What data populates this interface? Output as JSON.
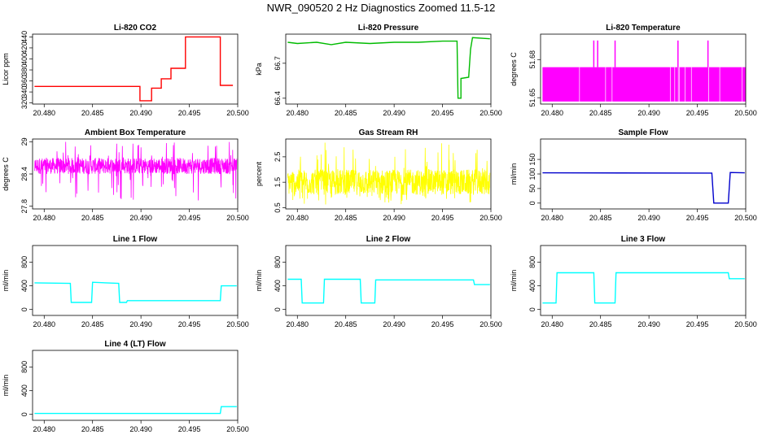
{
  "title": "NWR_090520  2 Hz Diagnostics Zoomed 11.5-12",
  "chart_data": [
    {
      "type": "line",
      "title": "Li-820 CO2",
      "ylabel": "Licor ppm",
      "color": "#ff0000",
      "xlim": [
        20.4788,
        20.5
      ],
      "ylim": [
        318,
        445
      ],
      "x_ticks": [
        "20.480",
        "20.485",
        "20.490",
        "20.495",
        "20.500"
      ],
      "y_ticks": [
        320,
        340,
        360,
        380,
        400,
        420,
        440
      ],
      "series": [
        {
          "x": [
            20.479,
            20.4899,
            20.4899,
            20.4911,
            20.4911,
            20.4921,
            20.4921,
            20.4931,
            20.4931,
            20.4946,
            20.4946,
            20.4982,
            20.4982,
            20.4995
          ],
          "y": [
            350,
            350,
            324,
            324,
            347,
            347,
            364,
            364,
            383,
            383,
            440,
            440,
            352,
            352
          ]
        }
      ]
    },
    {
      "type": "line",
      "title": "Li-820 Pressure",
      "ylabel": "kPa",
      "color": "#00bb00",
      "xlim": [
        20.4788,
        20.5
      ],
      "ylim": [
        66.35,
        66.95
      ],
      "x_ticks": [
        "20.480",
        "20.485",
        "20.490",
        "20.495",
        "20.500"
      ],
      "y_ticks": [
        66.4,
        66.7
      ],
      "series": [
        {
          "x": [
            20.479,
            20.48,
            20.482,
            20.4835,
            20.485,
            20.4875,
            20.49,
            20.4925,
            20.495,
            20.4965,
            20.4966,
            20.4969,
            20.4969,
            20.4977,
            20.4979,
            20.4981,
            20.4999
          ],
          "y": [
            66.88,
            66.87,
            66.88,
            66.86,
            66.88,
            66.87,
            66.88,
            66.88,
            66.89,
            66.89,
            66.4,
            66.4,
            66.57,
            66.58,
            66.82,
            66.92,
            66.91
          ]
        }
      ]
    },
    {
      "type": "line",
      "title": "Li-820 Temperature",
      "ylabel": "degrees C",
      "color": "#ff00ff",
      "xlim": [
        20.4788,
        20.5
      ],
      "ylim": [
        51.645,
        51.7
      ],
      "x_ticks": [
        "20.480",
        "20.485",
        "20.490",
        "20.495",
        "20.500"
      ],
      "y_ticks": [
        "51.65",
        "51.68"
      ],
      "series": [
        {
          "x": [
            20.479,
            20.5
          ],
          "y": [
            51.647,
            51.674
          ],
          "spikes_x": [
            20.4843,
            20.4847,
            20.4865,
            20.493,
            20.4961
          ],
          "spike_y": 51.695
        }
      ]
    },
    {
      "type": "line",
      "title": "Ambient Box Temperature",
      "ylabel": "degrees C",
      "color": "#ff00ff",
      "xlim": [
        20.4788,
        20.5
      ],
      "ylim": [
        27.75,
        29.05
      ],
      "x_ticks": [
        "20.480",
        "20.485",
        "20.490",
        "20.495",
        "20.500"
      ],
      "y_ticks": [
        27.8,
        28.4,
        29.0
      ],
      "series": [
        {
          "band": [
            28.4,
            28.7
          ],
          "min": 27.9,
          "max": 29.0
        }
      ]
    },
    {
      "type": "line",
      "title": "Gas Stream RH",
      "ylabel": "percent",
      "color": "#ffff00",
      "xlim": [
        20.4788,
        20.5
      ],
      "ylim": [
        0.45,
        3.2
      ],
      "x_ticks": [
        "20.480",
        "20.485",
        "20.490",
        "20.495",
        "20.500"
      ],
      "y_ticks": [
        0.5,
        1.5,
        2.5
      ],
      "series": [
        {
          "band": [
            1.0,
            2.0
          ],
          "min": 0.6,
          "max": 3.1
        }
      ]
    },
    {
      "type": "line",
      "title": "Sample Flow",
      "ylabel": "ml/min",
      "color": "#0000cc",
      "xlim": [
        20.4788,
        20.5
      ],
      "ylim": [
        -20,
        220
      ],
      "x_ticks": [
        "20.480",
        "20.485",
        "20.490",
        "20.495",
        "20.500"
      ],
      "y_ticks": [
        0,
        50,
        100,
        150
      ],
      "series": [
        {
          "x": [
            20.479,
            20.4965,
            20.4967,
            20.4982,
            20.4984,
            20.4999
          ],
          "y": [
            104,
            103,
            0,
            0,
            105,
            104
          ]
        }
      ]
    },
    {
      "type": "line",
      "title": "Line 1 Flow",
      "ylabel": "ml/min",
      "color": "#00ffff",
      "xlim": [
        20.4788,
        20.5
      ],
      "ylim": [
        -100,
        1080
      ],
      "x_ticks": [
        "20.480",
        "20.485",
        "20.490",
        "20.495",
        "20.500"
      ],
      "y_ticks": [
        0,
        400,
        800
      ],
      "series": [
        {
          "x": [
            20.479,
            20.4827,
            20.4828,
            20.4849,
            20.485,
            20.4877,
            20.4878,
            20.4885,
            20.4886,
            20.4982,
            20.4983,
            20.4999
          ],
          "y": [
            450,
            440,
            120,
            120,
            460,
            440,
            120,
            120,
            150,
            150,
            400,
            400
          ]
        }
      ]
    },
    {
      "type": "line",
      "title": "Line 2 Flow",
      "ylabel": "ml/min",
      "color": "#00ffff",
      "xlim": [
        20.4788,
        20.5
      ],
      "ylim": [
        -100,
        1080
      ],
      "x_ticks": [
        "20.480",
        "20.485",
        "20.490",
        "20.495",
        "20.500"
      ],
      "y_ticks": [
        0,
        400,
        800
      ],
      "series": [
        {
          "x": [
            20.479,
            20.4804,
            20.4805,
            20.4827,
            20.4828,
            20.4865,
            20.4866,
            20.488,
            20.4881,
            20.4982,
            20.4983,
            20.4999
          ],
          "y": [
            510,
            510,
            110,
            110,
            510,
            510,
            110,
            110,
            500,
            500,
            420,
            420
          ]
        }
      ]
    },
    {
      "type": "line",
      "title": "Line 3 Flow",
      "ylabel": "ml/min",
      "color": "#00ffff",
      "xlim": [
        20.4788,
        20.5
      ],
      "ylim": [
        -100,
        1080
      ],
      "x_ticks": [
        "20.480",
        "20.485",
        "20.490",
        "20.495",
        "20.500"
      ],
      "y_ticks": [
        0,
        400,
        800
      ],
      "series": [
        {
          "x": [
            20.479,
            20.4804,
            20.4805,
            20.4843,
            20.4844,
            20.4865,
            20.4866,
            20.4982,
            20.4983,
            20.4999
          ],
          "y": [
            110,
            110,
            620,
            620,
            110,
            110,
            620,
            620,
            520,
            520
          ]
        }
      ]
    },
    {
      "type": "line",
      "title": "Line 4 (LT) Flow",
      "ylabel": "ml/min",
      "color": "#00ffff",
      "xlim": [
        20.4788,
        20.5
      ],
      "ylim": [
        -100,
        1080
      ],
      "x_ticks": [
        "20.480",
        "20.485",
        "20.490",
        "20.495",
        "20.500"
      ],
      "y_ticks": [
        0,
        400,
        800
      ],
      "series": [
        {
          "x": [
            20.479,
            20.4982,
            20.4983,
            20.4999
          ],
          "y": [
            15,
            15,
            130,
            130
          ]
        }
      ]
    }
  ]
}
